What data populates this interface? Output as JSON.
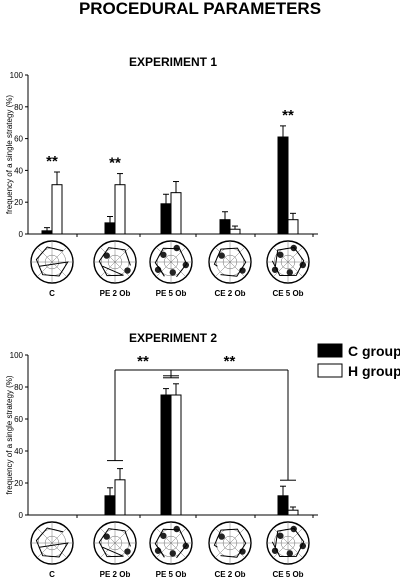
{
  "title": "PROCEDURAL PARAMETERS",
  "legend": [
    {
      "label": "C group",
      "color": "#000000"
    },
    {
      "label": "H group",
      "color": "#ffffff"
    }
  ],
  "chart_data": [
    {
      "type": "bar",
      "title": "EXPERIMENT 1",
      "ylabel": "frequency of a single strategy (%)",
      "ylim": [
        0,
        100
      ],
      "yticks": [
        0,
        20,
        40,
        60,
        80,
        100
      ],
      "categories": [
        "C",
        "PE 2 Ob",
        "PE 5 Ob",
        "CE 2 Ob",
        "CE 5 Ob"
      ],
      "series": [
        {
          "name": "C group",
          "values": [
            2,
            7,
            19,
            9,
            61
          ],
          "errors": [
            2,
            4,
            6,
            5,
            7
          ]
        },
        {
          "name": "H group",
          "values": [
            31,
            31,
            26,
            3,
            9
          ],
          "errors": [
            8,
            7,
            7,
            2,
            4
          ]
        }
      ],
      "significance": [
        {
          "category": "C",
          "label": "**"
        },
        {
          "category": "PE 2 Ob",
          "label": "**"
        },
        {
          "category": "CE 5 Ob",
          "label": "**"
        }
      ]
    },
    {
      "type": "bar",
      "title": "EXPERIMENT 2",
      "ylabel": "frequency of a single strategy (%)",
      "ylim": [
        0,
        100
      ],
      "yticks": [
        0,
        20,
        40,
        60,
        80,
        100
      ],
      "categories": [
        "C",
        "PE 2 Ob",
        "PE 5 Ob",
        "CE 2 Ob",
        "CE 5 Ob"
      ],
      "series": [
        {
          "name": "C group",
          "values": [
            0,
            12,
            75,
            0,
            12
          ],
          "errors": [
            0,
            5,
            4,
            0,
            6
          ]
        },
        {
          "name": "H group",
          "values": [
            0,
            22,
            75,
            0,
            3
          ],
          "errors": [
            0,
            7,
            7,
            0,
            2
          ]
        }
      ],
      "comparisons": [
        {
          "from": "PE 2 Ob",
          "to": "PE 5 Ob",
          "label": "**"
        },
        {
          "from": "PE 5 Ob",
          "to": "CE 5 Ob",
          "label": "**"
        }
      ]
    }
  ]
}
